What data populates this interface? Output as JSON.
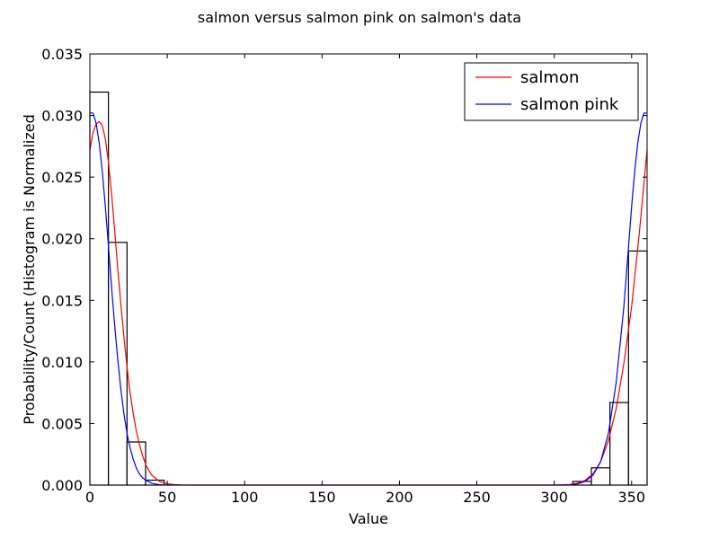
{
  "chart_data": {
    "type": "line",
    "title": "salmon versus salmon pink on salmon's data",
    "xlabel": "Value",
    "ylabel": "Probability/Count (Histogram is Normalized",
    "xlim": [
      0,
      360
    ],
    "ylim": [
      0,
      0.035
    ],
    "x_ticks": [
      "0",
      "50",
      "100",
      "150",
      "200",
      "250",
      "300",
      "350"
    ],
    "y_ticks": [
      "0.000",
      "0.005",
      "0.010",
      "0.015",
      "0.020",
      "0.025",
      "0.030",
      "0.035"
    ],
    "grid": false,
    "legend_position": "upper right",
    "histogram": {
      "bin_width": 12,
      "bins": [
        {
          "x0": 0,
          "x1": 12,
          "value": 0.0319
        },
        {
          "x0": 12,
          "x1": 24,
          "value": 0.0197
        },
        {
          "x0": 24,
          "x1": 36,
          "value": 0.0035
        },
        {
          "x0": 36,
          "x1": 48,
          "value": 0.0004
        },
        {
          "x0": 312,
          "x1": 324,
          "value": 0.0003
        },
        {
          "x0": 324,
          "x1": 336,
          "value": 0.0014
        },
        {
          "x0": 336,
          "x1": 348,
          "value": 0.0067
        },
        {
          "x0": 348,
          "x1": 360,
          "value": 0.019
        }
      ]
    },
    "series": [
      {
        "name": "salmon",
        "color": "#ff0000",
        "x": [
          0,
          2,
          4,
          6,
          8,
          10,
          12,
          14,
          16,
          18,
          20,
          22,
          24,
          26,
          28,
          30,
          32,
          34,
          36,
          38,
          40,
          45,
          50,
          55,
          60,
          70,
          80,
          300,
          310,
          315,
          320,
          325,
          330,
          335,
          340,
          345,
          350,
          355,
          360
        ],
        "y": [
          0.0272,
          0.0286,
          0.0293,
          0.0295,
          0.0292,
          0.0281,
          0.0262,
          0.0237,
          0.0207,
          0.0176,
          0.0147,
          0.012,
          0.0096,
          0.0075,
          0.0058,
          0.0044,
          0.0033,
          0.0024,
          0.0017,
          0.0012,
          0.0008,
          0.0003,
          0.0001,
          4e-05,
          1e-05,
          0,
          0,
          0,
          5e-05,
          0.00015,
          0.0004,
          0.0009,
          0.0019,
          0.0036,
          0.0062,
          0.0099,
          0.0145,
          0.0205,
          0.0272
        ]
      },
      {
        "name": "salmon pink",
        "color": "#0000ff",
        "x": [
          0,
          2,
          4,
          6,
          8,
          10,
          12,
          14,
          16,
          18,
          20,
          22,
          24,
          26,
          28,
          30,
          32,
          34,
          36,
          40,
          45,
          50,
          55,
          60,
          70,
          310,
          315,
          320,
          325,
          330,
          335,
          340,
          345,
          350,
          352,
          354,
          356,
          358,
          360
        ],
        "y": [
          0.0302,
          0.0302,
          0.0294,
          0.0278,
          0.0255,
          0.0226,
          0.0194,
          0.0161,
          0.013,
          0.0102,
          0.0078,
          0.0058,
          0.0042,
          0.003,
          0.0021,
          0.0014,
          0.0009,
          0.0006,
          0.0004,
          0.00015,
          3e-05,
          0,
          0,
          0,
          0,
          0,
          0.0001,
          0.0003,
          0.0008,
          0.0019,
          0.0042,
          0.0083,
          0.0145,
          0.0226,
          0.0255,
          0.0278,
          0.0294,
          0.0302,
          0.0302
        ]
      }
    ]
  }
}
